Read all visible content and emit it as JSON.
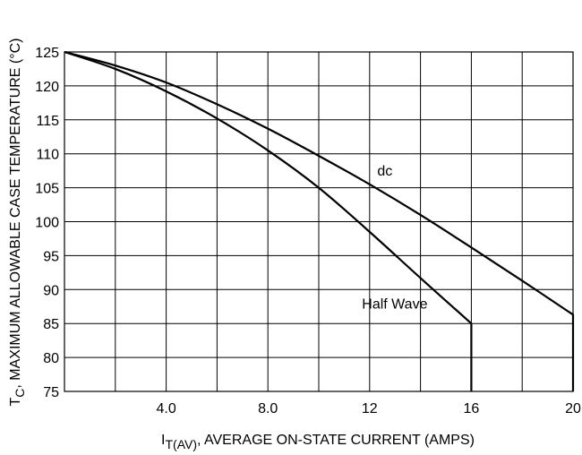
{
  "chart_data": {
    "type": "line",
    "xlabel": {
      "main": "I",
      "sub": "T(AV)",
      "rest": ", AVERAGE ON-STATE CURRENT (AMPS)"
    },
    "ylabel": {
      "main": "T",
      "sub": "C",
      "rest": ", MAXIMUM ALLOWABLE CASE TEMPERATURE (°C)"
    },
    "xlim": [
      0,
      20
    ],
    "ylim": [
      75,
      125
    ],
    "x_ticks": [
      {
        "value": 4,
        "label": "4.0"
      },
      {
        "value": 8,
        "label": "8.0"
      },
      {
        "value": 12,
        "label": "12"
      },
      {
        "value": 16,
        "label": "16"
      },
      {
        "value": 20,
        "label": "20"
      }
    ],
    "x_grid_step": 2,
    "y_ticks": [
      75,
      80,
      85,
      90,
      95,
      100,
      105,
      110,
      115,
      120,
      125
    ],
    "grid": true,
    "series": [
      {
        "name": "dc",
        "x": [
          0,
          2,
          4,
          6,
          8,
          10,
          12,
          14,
          16,
          18,
          20,
          20
        ],
        "y": [
          125,
          123,
          120.5,
          117.3,
          113.7,
          109.7,
          105.5,
          101,
          96.2,
          91.3,
          86.3,
          75
        ]
      },
      {
        "name": "Half Wave",
        "x": [
          0,
          2,
          4,
          6,
          8,
          10,
          12,
          14,
          16,
          16
        ],
        "y": [
          125,
          122.5,
          119.2,
          115.2,
          110.5,
          105,
          98.5,
          91.7,
          85,
          75
        ]
      }
    ],
    "annotations": [
      {
        "text": "dc",
        "x": 12.3,
        "y": 106.8
      },
      {
        "text": "Half Wave",
        "x": 11.7,
        "y": 87.2
      }
    ]
  }
}
